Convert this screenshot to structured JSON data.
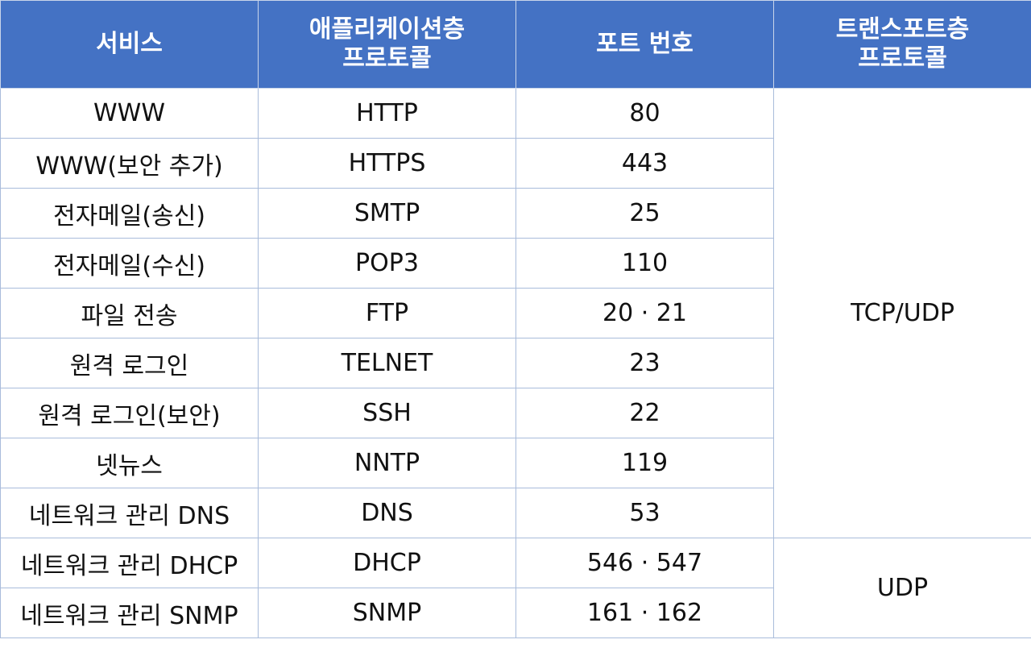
{
  "headers": {
    "service": "서비스",
    "app_protocol_line1": "애플리케이션층",
    "app_protocol_line2": "프로토콜",
    "port": "포트 번호",
    "transport_line1": "트랜스포트층",
    "transport_line2": "프로토콜"
  },
  "rows": [
    {
      "service": "WWW",
      "protocol": "HTTP",
      "port": "80"
    },
    {
      "service": "WWW(보안 추가)",
      "protocol": "HTTPS",
      "port": "443"
    },
    {
      "service": "전자메일(송신)",
      "protocol": "SMTP",
      "port": "25"
    },
    {
      "service": "전자메일(수신)",
      "protocol": "POP3",
      "port": "110"
    },
    {
      "service": "파일 전송",
      "protocol": "FTP",
      "port": "20 · 21"
    },
    {
      "service": "원격 로그인",
      "protocol": "TELNET",
      "port": "23"
    },
    {
      "service": "원격 로그인(보안)",
      "protocol": "SSH",
      "port": "22"
    },
    {
      "service": "넷뉴스",
      "protocol": "NNTP",
      "port": "119"
    },
    {
      "service": "네트워크 관리 DNS",
      "protocol": "DNS",
      "port": "53"
    },
    {
      "service": "네트워크 관리 DHCP",
      "protocol": "DHCP",
      "port": "546 · 547"
    },
    {
      "service": "네트워크 관리 SNMP",
      "protocol": "SNMP",
      "port": "161 · 162"
    }
  ],
  "transport_groups": {
    "tcp_udp": "TCP/UDP",
    "udp": "UDP"
  },
  "colors": {
    "header_bg": "#4472c4",
    "header_text": "#ffffff",
    "border": "#a9bcdb"
  }
}
